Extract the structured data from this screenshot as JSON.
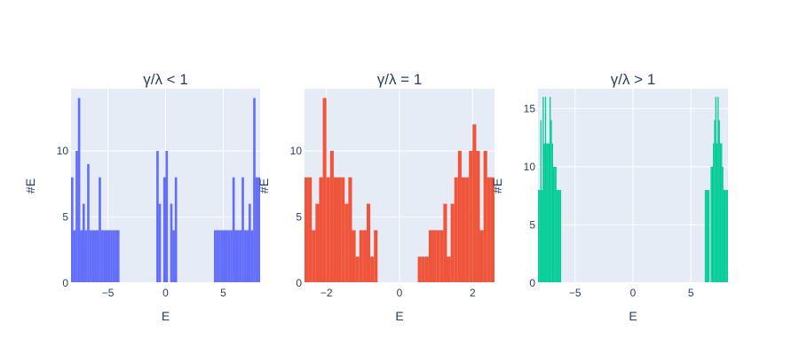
{
  "chart_data": [
    {
      "type": "bar",
      "title": "γ/λ < 1",
      "xlabel": "E",
      "ylabel": "#E",
      "xlim": [
        -8.2,
        8.2
      ],
      "ylim": [
        0,
        14.7
      ],
      "xticks": [
        -5,
        0,
        5
      ],
      "xtick_labels": [
        "−5",
        "0",
        "5"
      ],
      "yticks": [
        0,
        5,
        10
      ],
      "ytick_labels": [
        "0",
        "5",
        "10"
      ],
      "grid": true,
      "color": "#636efa",
      "bin_width": 0.205,
      "x": [
        -8.1,
        -7.9,
        -7.7,
        -7.5,
        -7.3,
        -7.1,
        -6.9,
        -6.7,
        -6.5,
        -6.3,
        -6.1,
        -5.9,
        -5.7,
        -5.5,
        -5.3,
        -5.1,
        -4.9,
        -4.7,
        -4.5,
        -4.3,
        -4.1,
        -0.7,
        -0.5,
        -0.1,
        0.1,
        0.5,
        0.7,
        0.9,
        4.3,
        4.5,
        4.7,
        4.9,
        5.1,
        5.3,
        5.5,
        5.7,
        5.9,
        6.1,
        6.3,
        6.5,
        6.7,
        6.9,
        7.1,
        7.3,
        7.5,
        7.7,
        7.9,
        8.1
      ],
      "values": [
        8,
        4,
        10,
        14,
        4,
        6,
        4,
        9,
        4,
        4,
        4,
        4,
        8,
        4,
        4,
        4,
        4,
        4,
        4,
        4,
        4,
        10,
        6,
        8,
        10,
        6,
        4,
        8,
        4,
        4,
        4,
        4,
        4,
        4,
        4,
        4,
        8,
        4,
        4,
        4,
        8,
        4,
        4,
        6,
        4,
        14,
        8,
        8
      ]
    },
    {
      "type": "bar",
      "title": "γ/λ = 1",
      "xlabel": "E",
      "ylabel": "#E",
      "xlim": [
        -2.6,
        2.6
      ],
      "ylim": [
        0,
        14.7
      ],
      "xticks": [
        -2,
        0,
        2
      ],
      "xtick_labels": [
        "−2",
        "0",
        "2"
      ],
      "yticks": [
        0,
        5,
        10
      ],
      "ytick_labels": [
        "0",
        "5",
        "10"
      ],
      "grid": true,
      "color": "#ef553b",
      "bin_width": 0.1,
      "x": [
        -2.55,
        -2.45,
        -2.35,
        -2.25,
        -2.15,
        -2.05,
        -1.95,
        -1.85,
        -1.75,
        -1.65,
        -1.55,
        -1.45,
        -1.35,
        -1.25,
        -1.15,
        -1.05,
        -0.95,
        -0.85,
        -0.75,
        -0.65,
        0.55,
        0.65,
        0.75,
        0.85,
        0.95,
        1.05,
        1.15,
        1.25,
        1.35,
        1.45,
        1.55,
        1.65,
        1.75,
        1.85,
        1.95,
        2.05,
        2.15,
        2.25,
        2.35,
        2.45,
        2.55
      ],
      "values": [
        8,
        8,
        4,
        6,
        8,
        14,
        8,
        10,
        8,
        8,
        8,
        6,
        8,
        4,
        2,
        4,
        4,
        6,
        2,
        4,
        2,
        2,
        2,
        4,
        4,
        4,
        4,
        6,
        2,
        6,
        8,
        10,
        8,
        8,
        10,
        12,
        10,
        4,
        10,
        8,
        8
      ]
    },
    {
      "type": "bar",
      "title": "γ/λ > 1",
      "xlabel": "E",
      "ylabel": "#E",
      "xlim": [
        -8.2,
        8.2
      ],
      "ylim": [
        0,
        16.7
      ],
      "xticks": [
        -5,
        0,
        5
      ],
      "xtick_labels": [
        "−5",
        "0",
        "5"
      ],
      "yticks": [
        0,
        5,
        10,
        15
      ],
      "ytick_labels": [
        "0",
        "5",
        "10",
        "15"
      ],
      "grid": true,
      "color": "#00cc96",
      "bin_width": 0.1,
      "x": [
        -8.15,
        -8.05,
        -7.95,
        -7.85,
        -7.75,
        -7.65,
        -7.55,
        -7.45,
        -7.35,
        -7.25,
        -7.15,
        -7.05,
        -6.95,
        -6.85,
        -6.75,
        -6.65,
        -6.55,
        -6.45,
        -6.35,
        -6.25,
        6.25,
        6.35,
        6.45,
        6.55,
        6.75,
        6.85,
        6.95,
        7.05,
        7.15,
        7.25,
        7.35,
        7.45,
        7.55,
        7.65,
        7.75,
        7.85,
        7.95,
        8.05,
        8.15
      ],
      "values": [
        8,
        8,
        14,
        8,
        16,
        12,
        16,
        12,
        12,
        12,
        16,
        14,
        12,
        10,
        10,
        10,
        8,
        8,
        8,
        8,
        8,
        8,
        8,
        8,
        10,
        10,
        12,
        14,
        16,
        12,
        16,
        14,
        12,
        12,
        10,
        8,
        8,
        8,
        8
      ]
    }
  ]
}
